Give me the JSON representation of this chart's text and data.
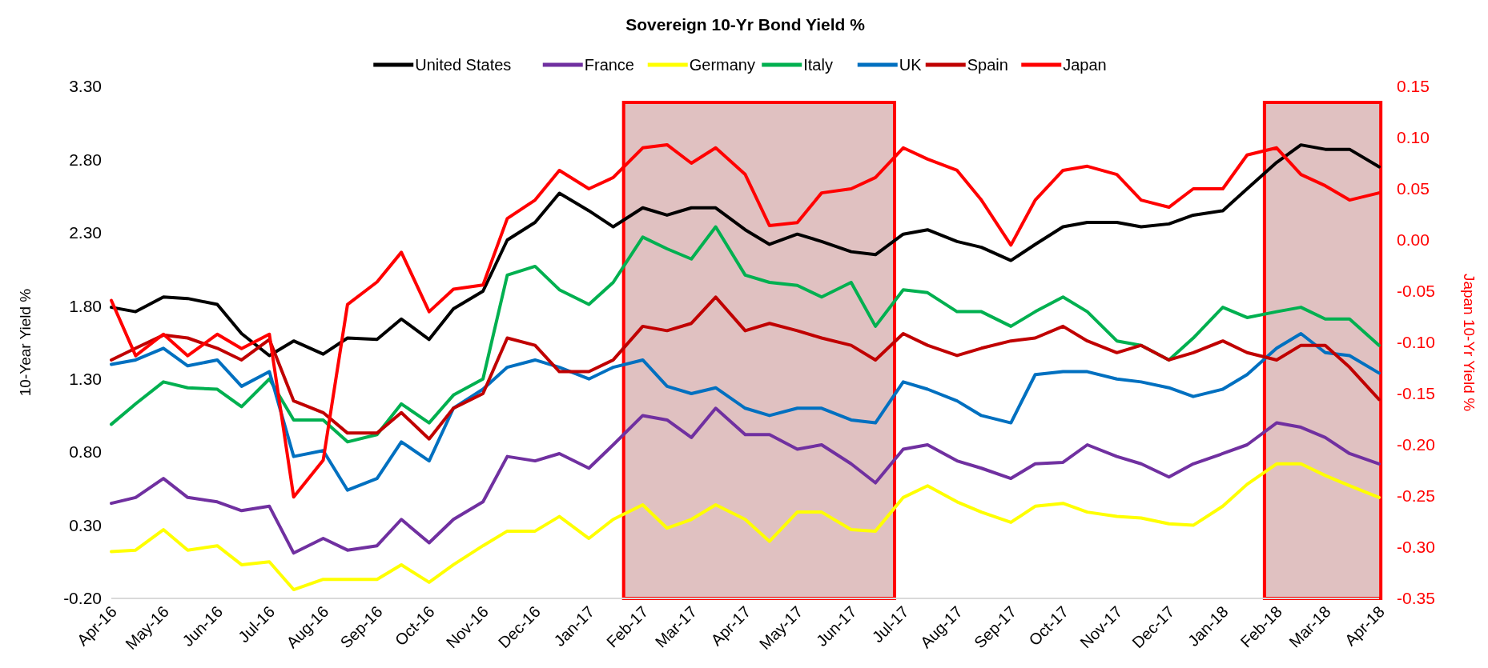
{
  "chart_data": {
    "type": "line",
    "title": "Sovereign 10-Yr Bond Yield %",
    "ylabel": "10-Year Yield %",
    "y2label": "Japan 10-Yr Yield %",
    "x": [
      "2016-04-01",
      "2016-04-15",
      "2016-05-01",
      "2016-05-15",
      "2016-06-01",
      "2016-06-15",
      "2016-07-01",
      "2016-07-15",
      "2016-08-01",
      "2016-08-15",
      "2016-09-01",
      "2016-09-15",
      "2016-10-01",
      "2016-10-15",
      "2016-11-01",
      "2016-11-15",
      "2016-12-01",
      "2016-12-15",
      "2017-01-01",
      "2017-01-15",
      "2017-02-01",
      "2017-02-15",
      "2017-03-01",
      "2017-03-15",
      "2017-04-01",
      "2017-04-15",
      "2017-05-01",
      "2017-05-15",
      "2017-06-01",
      "2017-06-15",
      "2017-07-01",
      "2017-07-15",
      "2017-08-01",
      "2017-08-15",
      "2017-09-01",
      "2017-09-15",
      "2017-10-01",
      "2017-10-15",
      "2017-11-01",
      "2017-11-15",
      "2017-12-01",
      "2017-12-15",
      "2018-01-01",
      "2018-01-15",
      "2018-02-01",
      "2018-02-15",
      "2018-03-01",
      "2018-03-15",
      "2018-04-01"
    ],
    "series": [
      {
        "name": "United States",
        "color": "#000000",
        "values": [
          1.79,
          1.76,
          1.86,
          1.85,
          1.81,
          1.61,
          1.46,
          1.56,
          1.47,
          1.58,
          1.57,
          1.71,
          1.57,
          1.78,
          1.9,
          2.25,
          2.37,
          2.57,
          2.45,
          2.34,
          2.47,
          2.42,
          2.47,
          2.47,
          2.32,
          2.22,
          2.29,
          2.24,
          2.17,
          2.15,
          2.29,
          2.32,
          2.24,
          2.2,
          2.11,
          2.22,
          2.34,
          2.37,
          2.37,
          2.34,
          2.36,
          2.42,
          2.45,
          2.6,
          2.78,
          2.9,
          2.87,
          2.87,
          2.75
        ]
      },
      {
        "name": "France",
        "color": "#7030a0",
        "values": [
          0.45,
          0.49,
          0.62,
          0.49,
          0.46,
          0.4,
          0.43,
          0.11,
          0.21,
          0.13,
          0.16,
          0.34,
          0.18,
          0.34,
          0.46,
          0.77,
          0.74,
          0.79,
          0.69,
          0.85,
          1.05,
          1.02,
          0.9,
          1.1,
          0.92,
          0.92,
          0.82,
          0.85,
          0.72,
          0.59,
          0.82,
          0.85,
          0.74,
          0.69,
          0.62,
          0.72,
          0.73,
          0.85,
          0.77,
          0.72,
          0.63,
          0.72,
          0.79,
          0.85,
          1.0,
          0.97,
          0.9,
          0.79,
          0.72
        ]
      },
      {
        "name": "Germany",
        "color": "#ffff00",
        "values": [
          0.12,
          0.13,
          0.27,
          0.13,
          0.16,
          0.03,
          0.05,
          -0.14,
          -0.07,
          -0.07,
          -0.07,
          0.03,
          -0.09,
          0.03,
          0.16,
          0.26,
          0.26,
          0.36,
          0.21,
          0.34,
          0.44,
          0.28,
          0.34,
          0.44,
          0.34,
          0.19,
          0.39,
          0.39,
          0.27,
          0.26,
          0.49,
          0.57,
          0.46,
          0.39,
          0.32,
          0.43,
          0.45,
          0.39,
          0.36,
          0.35,
          0.31,
          0.3,
          0.43,
          0.58,
          0.72,
          0.72,
          0.64,
          0.57,
          0.49
        ]
      },
      {
        "name": "Italy",
        "color": "#00b050",
        "values": [
          0.99,
          1.13,
          1.28,
          1.24,
          1.23,
          1.11,
          1.3,
          1.02,
          1.02,
          0.87,
          0.92,
          1.13,
          1.0,
          1.19,
          1.3,
          2.01,
          2.07,
          1.91,
          1.81,
          1.96,
          2.27,
          2.19,
          2.12,
          2.34,
          2.01,
          1.96,
          1.94,
          1.86,
          1.96,
          1.66,
          1.91,
          1.89,
          1.76,
          1.76,
          1.66,
          1.76,
          1.86,
          1.76,
          1.56,
          1.53,
          1.43,
          1.58,
          1.79,
          1.72,
          1.76,
          1.79,
          1.71,
          1.71,
          1.53
        ]
      },
      {
        "name": "UK",
        "color": "#0070c0",
        "values": [
          1.4,
          1.43,
          1.51,
          1.39,
          1.43,
          1.25,
          1.35,
          0.77,
          0.81,
          0.54,
          0.62,
          0.87,
          0.74,
          1.1,
          1.23,
          1.38,
          1.43,
          1.38,
          1.3,
          1.38,
          1.43,
          1.25,
          1.2,
          1.24,
          1.1,
          1.05,
          1.1,
          1.1,
          1.02,
          1.0,
          1.28,
          1.23,
          1.15,
          1.05,
          1.0,
          1.33,
          1.35,
          1.35,
          1.3,
          1.28,
          1.24,
          1.18,
          1.23,
          1.33,
          1.51,
          1.61,
          1.48,
          1.46,
          1.34
        ]
      },
      {
        "name": "Spain",
        "color": "#c00000",
        "values": [
          1.43,
          1.51,
          1.6,
          1.58,
          1.51,
          1.43,
          1.57,
          1.15,
          1.07,
          0.93,
          0.93,
          1.07,
          0.89,
          1.1,
          1.2,
          1.58,
          1.53,
          1.35,
          1.35,
          1.43,
          1.66,
          1.63,
          1.68,
          1.86,
          1.63,
          1.68,
          1.63,
          1.58,
          1.53,
          1.43,
          1.61,
          1.53,
          1.46,
          1.51,
          1.56,
          1.58,
          1.66,
          1.56,
          1.48,
          1.53,
          1.43,
          1.48,
          1.56,
          1.48,
          1.43,
          1.53,
          1.53,
          1.38,
          1.16
        ]
      },
      {
        "name": "Japan",
        "color": "#ff0000",
        "axis": "y2",
        "values": [
          -0.059,
          -0.113,
          -0.092,
          -0.113,
          -0.092,
          -0.106,
          -0.092,
          -0.251,
          -0.215,
          -0.063,
          -0.041,
          -0.012,
          -0.07,
          -0.048,
          -0.044,
          0.021,
          0.039,
          0.068,
          0.05,
          0.061,
          0.09,
          0.093,
          0.075,
          0.09,
          0.064,
          0.014,
          0.017,
          0.046,
          0.05,
          0.061,
          0.09,
          0.079,
          0.068,
          0.039,
          -0.005,
          0.039,
          0.068,
          0.072,
          0.064,
          0.039,
          0.032,
          0.05,
          0.05,
          0.083,
          0.09,
          0.064,
          0.053,
          0.039,
          0.046
        ]
      }
    ],
    "xlim": [
      "2016-04-01",
      "2018-04-01"
    ],
    "xticks": [
      {
        "value": "2016-04-01",
        "label": "Apr-16"
      },
      {
        "value": "2016-05-01",
        "label": "May-16"
      },
      {
        "value": "2016-06-01",
        "label": "Jun-16"
      },
      {
        "value": "2016-07-01",
        "label": "Jul-16"
      },
      {
        "value": "2016-08-01",
        "label": "Aug-16"
      },
      {
        "value": "2016-09-01",
        "label": "Sep-16"
      },
      {
        "value": "2016-10-01",
        "label": "Oct-16"
      },
      {
        "value": "2016-11-01",
        "label": "Nov-16"
      },
      {
        "value": "2016-12-01",
        "label": "Dec-16"
      },
      {
        "value": "2017-01-01",
        "label": "Jan-17"
      },
      {
        "value": "2017-02-01",
        "label": "Feb-17"
      },
      {
        "value": "2017-03-01",
        "label": "Mar-17"
      },
      {
        "value": "2017-04-01",
        "label": "Apr-17"
      },
      {
        "value": "2017-05-01",
        "label": "May-17"
      },
      {
        "value": "2017-06-01",
        "label": "Jun-17"
      },
      {
        "value": "2017-07-01",
        "label": "Jul-17"
      },
      {
        "value": "2017-08-01",
        "label": "Aug-17"
      },
      {
        "value": "2017-09-01",
        "label": "Sep-17"
      },
      {
        "value": "2017-10-01",
        "label": "Oct-17"
      },
      {
        "value": "2017-11-01",
        "label": "Nov-17"
      },
      {
        "value": "2017-12-01",
        "label": "Dec-17"
      },
      {
        "value": "2018-01-01",
        "label": "Jan-18"
      },
      {
        "value": "2018-02-01",
        "label": "Feb-18"
      },
      {
        "value": "2018-03-01",
        "label": "Mar-18"
      },
      {
        "value": "2018-04-01",
        "label": "Apr-18"
      }
    ],
    "ylim": [
      -0.2,
      3.3
    ],
    "yticks": [
      {
        "value": -0.2,
        "label": "-0.20"
      },
      {
        "value": 0.3,
        "label": "0.30"
      },
      {
        "value": 0.8,
        "label": "0.80"
      },
      {
        "value": 1.3,
        "label": "1.30"
      },
      {
        "value": 1.8,
        "label": "1.80"
      },
      {
        "value": 2.3,
        "label": "2.30"
      },
      {
        "value": 2.8,
        "label": "2.80"
      },
      {
        "value": 3.3,
        "label": "3.30"
      }
    ],
    "y2lim": [
      -0.35,
      0.15
    ],
    "y2ticks": [
      {
        "value": -0.35,
        "label": "-0.35"
      },
      {
        "value": -0.3,
        "label": "-0.30"
      },
      {
        "value": -0.25,
        "label": "-0.25"
      },
      {
        "value": -0.2,
        "label": "-0.20"
      },
      {
        "value": -0.15,
        "label": "-0.15"
      },
      {
        "value": -0.1,
        "label": "-0.10"
      },
      {
        "value": -0.05,
        "label": "-0.05"
      },
      {
        "value": 0,
        "label": "0.00"
      },
      {
        "value": 0.05,
        "label": "0.05"
      },
      {
        "value": 0.1,
        "label": "0.10"
      },
      {
        "value": 0.15,
        "label": "0.15"
      }
    ],
    "bands": [
      {
        "axis": "x",
        "from": "2017-01-21",
        "to": "2017-06-26",
        "color": "#993333"
      },
      {
        "axis": "x",
        "from": "2018-01-25",
        "to": "2018-04-02",
        "color": "#993333"
      }
    ],
    "legend": "top",
    "grid": false,
    "marker": "none",
    "line_style": "solid"
  }
}
